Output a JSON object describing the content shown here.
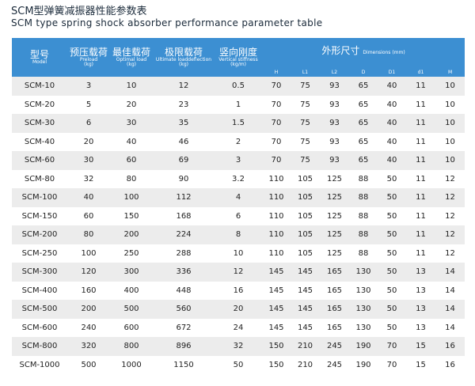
{
  "title": "SCM型弹簧减振器性能参数表",
  "subtitle": "SCM type spring shock absorber performance parameter table",
  "table": {
    "columns": [
      {
        "cn": "型号",
        "en": "Model"
      },
      {
        "cn": "预压载荷",
        "en": "Preload",
        "unit": "(kg)"
      },
      {
        "cn": "最佳载荷",
        "en": "Optimal load",
        "unit": "(kg)"
      },
      {
        "cn": "极限载荷",
        "en": "Ultimate loaddeflection",
        "unit": "(kg)"
      },
      {
        "cn": "竖向刚度",
        "en": "Vertical stiffness",
        "unit": "(kg/m)"
      }
    ],
    "dimensions": {
      "cn": "外形尺寸",
      "en": "Dimensions (mm)",
      "columns": [
        "H",
        "L1",
        "L2",
        "D",
        "D1",
        "d1",
        "M"
      ]
    },
    "rows": [
      [
        "SCM-10",
        3,
        10,
        12,
        0.5,
        70,
        75,
        93,
        65,
        40,
        11,
        10
      ],
      [
        "SCM-20",
        5,
        20,
        23,
        1,
        70,
        75,
        93,
        65,
        40,
        11,
        10
      ],
      [
        "SCM-30",
        6,
        30,
        35,
        1.5,
        70,
        75,
        93,
        65,
        40,
        11,
        10
      ],
      [
        "SCM-40",
        20,
        40,
        46,
        2,
        70,
        75,
        93,
        65,
        40,
        11,
        10
      ],
      [
        "SCM-60",
        30,
        60,
        69,
        3,
        70,
        75,
        93,
        65,
        40,
        11,
        10
      ],
      [
        "SCM-80",
        32,
        80,
        90,
        3.2,
        110,
        105,
        125,
        88,
        50,
        11,
        12
      ],
      [
        "SCM-100",
        40,
        100,
        112,
        4,
        110,
        105,
        125,
        88,
        50,
        11,
        12
      ],
      [
        "SCM-150",
        60,
        150,
        168,
        6,
        110,
        105,
        125,
        88,
        50,
        11,
        12
      ],
      [
        "SCM-200",
        80,
        200,
        224,
        8,
        110,
        105,
        125,
        88,
        50,
        11,
        12
      ],
      [
        "SCM-250",
        100,
        250,
        288,
        10,
        110,
        105,
        125,
        88,
        50,
        11,
        12
      ],
      [
        "SCM-300",
        120,
        300,
        336,
        12,
        145,
        145,
        165,
        130,
        50,
        13,
        14
      ],
      [
        "SCM-400",
        160,
        400,
        448,
        16,
        145,
        145,
        165,
        130,
        50,
        13,
        14
      ],
      [
        "SCM-500",
        200,
        500,
        560,
        20,
        145,
        145,
        165,
        130,
        50,
        13,
        14
      ],
      [
        "SCM-600",
        240,
        600,
        672,
        24,
        145,
        145,
        165,
        130,
        50,
        13,
        14
      ],
      [
        "SCM-800",
        320,
        800,
        896,
        32,
        150,
        210,
        245,
        190,
        70,
        15,
        16
      ],
      [
        "SCM-1000",
        500,
        1000,
        1150,
        50,
        150,
        210,
        245,
        190,
        70,
        15,
        16
      ]
    ]
  }
}
